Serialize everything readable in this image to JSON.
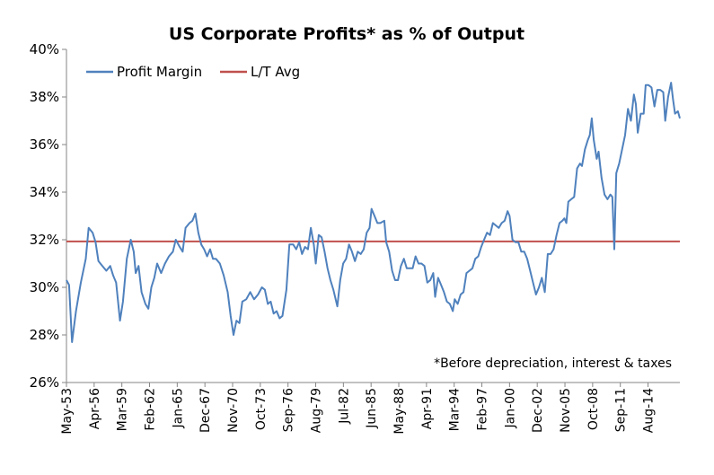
{
  "chart_data": {
    "type": "line",
    "title": "US Corporate Profits* as % of Output",
    "note": "*Before depreciation, interest & taxes",
    "xlabel": "",
    "ylabel": "",
    "ylim": [
      26,
      40
    ],
    "y_ticks": [
      "26%",
      "28%",
      "30%",
      "32%",
      "34%",
      "36%",
      "38%",
      "40%"
    ],
    "x_ticks": [
      "May-53",
      "Apr-56",
      "Mar-59",
      "Feb-62",
      "Jan-65",
      "Dec-67",
      "Nov-70",
      "Oct-73",
      "Sep-76",
      "Aug-79",
      "Jul-82",
      "Jun-85",
      "May-88",
      "Apr-91",
      "Mar-94",
      "Feb-97",
      "Jan-00",
      "Dec-02",
      "Nov-05",
      "Oct-08",
      "Sep-11",
      "Aug-14"
    ],
    "x_start": 1953.33,
    "x_end": 2016.0,
    "legend_position": "top-left",
    "series": [
      {
        "name": "Profit Margin",
        "color": "#4F81BD",
        "points": [
          [
            1953.33,
            30.3
          ],
          [
            1953.6,
            30.1
          ],
          [
            1953.9,
            27.7
          ],
          [
            1954.3,
            29.0
          ],
          [
            1954.8,
            30.2
          ],
          [
            1955.3,
            31.2
          ],
          [
            1955.6,
            32.5
          ],
          [
            1956.0,
            32.3
          ],
          [
            1956.3,
            31.9
          ],
          [
            1956.6,
            31.1
          ],
          [
            1957.0,
            30.9
          ],
          [
            1957.4,
            30.7
          ],
          [
            1957.8,
            30.9
          ],
          [
            1958.1,
            30.5
          ],
          [
            1958.4,
            30.2
          ],
          [
            1958.8,
            28.6
          ],
          [
            1959.1,
            29.4
          ],
          [
            1959.5,
            31.2
          ],
          [
            1959.9,
            32.0
          ],
          [
            1960.2,
            31.5
          ],
          [
            1960.4,
            30.6
          ],
          [
            1960.7,
            30.9
          ],
          [
            1961.0,
            29.8
          ],
          [
            1961.4,
            29.3
          ],
          [
            1961.7,
            29.1
          ],
          [
            1962.0,
            30.0
          ],
          [
            1962.3,
            30.4
          ],
          [
            1962.6,
            31.0
          ],
          [
            1963.0,
            30.6
          ],
          [
            1963.4,
            31.0
          ],
          [
            1963.8,
            31.3
          ],
          [
            1964.2,
            31.5
          ],
          [
            1964.5,
            32.0
          ],
          [
            1964.9,
            31.7
          ],
          [
            1965.2,
            31.5
          ],
          [
            1965.5,
            32.5
          ],
          [
            1965.9,
            32.7
          ],
          [
            1966.2,
            32.8
          ],
          [
            1966.5,
            33.1
          ],
          [
            1966.8,
            32.3
          ],
          [
            1967.1,
            31.8
          ],
          [
            1967.4,
            31.6
          ],
          [
            1967.7,
            31.3
          ],
          [
            1968.0,
            31.6
          ],
          [
            1968.3,
            31.2
          ],
          [
            1968.6,
            31.2
          ],
          [
            1969.0,
            31.0
          ],
          [
            1969.4,
            30.5
          ],
          [
            1969.8,
            29.8
          ],
          [
            1970.1,
            28.8
          ],
          [
            1970.4,
            28.0
          ],
          [
            1970.7,
            28.6
          ],
          [
            1971.0,
            28.5
          ],
          [
            1971.3,
            29.4
          ],
          [
            1971.7,
            29.5
          ],
          [
            1972.1,
            29.8
          ],
          [
            1972.5,
            29.5
          ],
          [
            1972.9,
            29.7
          ],
          [
            1973.3,
            30.0
          ],
          [
            1973.6,
            29.9
          ],
          [
            1973.9,
            29.3
          ],
          [
            1974.2,
            29.4
          ],
          [
            1974.5,
            28.9
          ],
          [
            1974.8,
            29.0
          ],
          [
            1975.1,
            28.7
          ],
          [
            1975.4,
            28.8
          ],
          [
            1975.8,
            29.9
          ],
          [
            1976.1,
            31.8
          ],
          [
            1976.5,
            31.8
          ],
          [
            1976.8,
            31.6
          ],
          [
            1977.1,
            31.9
          ],
          [
            1977.4,
            31.4
          ],
          [
            1977.7,
            31.7
          ],
          [
            1978.0,
            31.6
          ],
          [
            1978.3,
            32.5
          ],
          [
            1978.6,
            31.8
          ],
          [
            1978.8,
            31.0
          ],
          [
            1979.1,
            32.2
          ],
          [
            1979.4,
            32.1
          ],
          [
            1979.7,
            31.5
          ],
          [
            1980.0,
            30.8
          ],
          [
            1980.3,
            30.3
          ],
          [
            1980.6,
            29.9
          ],
          [
            1981.0,
            29.2
          ],
          [
            1981.3,
            30.3
          ],
          [
            1981.6,
            31.0
          ],
          [
            1981.9,
            31.2
          ],
          [
            1982.2,
            31.8
          ],
          [
            1982.5,
            31.5
          ],
          [
            1982.8,
            31.1
          ],
          [
            1983.1,
            31.5
          ],
          [
            1983.4,
            31.4
          ],
          [
            1983.7,
            31.6
          ],
          [
            1984.0,
            32.3
          ],
          [
            1984.3,
            32.5
          ],
          [
            1984.5,
            33.3
          ],
          [
            1984.8,
            33.0
          ],
          [
            1985.1,
            32.7
          ],
          [
            1985.4,
            32.7
          ],
          [
            1985.8,
            32.8
          ],
          [
            1986.0,
            31.9
          ],
          [
            1986.3,
            31.5
          ],
          [
            1986.6,
            30.7
          ],
          [
            1986.9,
            30.3
          ],
          [
            1987.2,
            30.3
          ],
          [
            1987.5,
            30.9
          ],
          [
            1987.8,
            31.2
          ],
          [
            1988.1,
            30.8
          ],
          [
            1988.4,
            30.8
          ],
          [
            1988.7,
            30.8
          ],
          [
            1989.0,
            31.3
          ],
          [
            1989.3,
            31.0
          ],
          [
            1989.6,
            31.0
          ],
          [
            1989.9,
            30.9
          ],
          [
            1990.2,
            30.2
          ],
          [
            1990.5,
            30.3
          ],
          [
            1990.8,
            30.6
          ],
          [
            1991.0,
            29.6
          ],
          [
            1991.3,
            30.4
          ],
          [
            1991.6,
            30.1
          ],
          [
            1991.9,
            29.8
          ],
          [
            1992.2,
            29.4
          ],
          [
            1992.5,
            29.3
          ],
          [
            1992.8,
            29.0
          ],
          [
            1993.0,
            29.5
          ],
          [
            1993.3,
            29.3
          ],
          [
            1993.6,
            29.7
          ],
          [
            1993.9,
            29.8
          ],
          [
            1994.2,
            30.6
          ],
          [
            1994.5,
            30.7
          ],
          [
            1994.8,
            30.8
          ],
          [
            1995.1,
            31.2
          ],
          [
            1995.4,
            31.3
          ],
          [
            1995.7,
            31.7
          ],
          [
            1996.0,
            32.0
          ],
          [
            1996.3,
            32.3
          ],
          [
            1996.6,
            32.2
          ],
          [
            1996.9,
            32.7
          ],
          [
            1997.2,
            32.6
          ],
          [
            1997.5,
            32.5
          ],
          [
            1997.8,
            32.7
          ],
          [
            1998.1,
            32.8
          ],
          [
            1998.4,
            33.2
          ],
          [
            1998.6,
            33.0
          ],
          [
            1998.9,
            32.0
          ],
          [
            1999.2,
            31.9
          ],
          [
            1999.5,
            31.9
          ],
          [
            1999.8,
            31.5
          ],
          [
            2000.1,
            31.5
          ],
          [
            2000.4,
            31.2
          ],
          [
            2000.7,
            30.7
          ],
          [
            2001.0,
            30.2
          ],
          [
            2001.3,
            29.7
          ],
          [
            2001.6,
            30.0
          ],
          [
            2001.9,
            30.4
          ],
          [
            2002.2,
            29.8
          ],
          [
            2002.5,
            31.4
          ],
          [
            2002.8,
            31.4
          ],
          [
            2003.1,
            31.6
          ],
          [
            2003.4,
            32.2
          ],
          [
            2003.7,
            32.7
          ],
          [
            2004.0,
            32.8
          ],
          [
            2004.2,
            32.9
          ],
          [
            2004.4,
            32.7
          ],
          [
            2004.6,
            33.6
          ],
          [
            2004.9,
            33.7
          ],
          [
            2005.2,
            33.8
          ],
          [
            2005.5,
            35.0
          ],
          [
            2005.8,
            35.2
          ],
          [
            2006.0,
            35.1
          ],
          [
            2006.3,
            35.8
          ],
          [
            2006.6,
            36.2
          ],
          [
            2006.8,
            36.4
          ],
          [
            2007.0,
            37.1
          ],
          [
            2007.2,
            36.2
          ],
          [
            2007.5,
            35.4
          ],
          [
            2007.7,
            35.7
          ],
          [
            2008.0,
            34.6
          ],
          [
            2008.3,
            33.9
          ],
          [
            2008.6,
            33.7
          ],
          [
            2008.9,
            33.9
          ],
          [
            2009.1,
            33.8
          ],
          [
            2009.3,
            31.6
          ],
          [
            2009.5,
            34.8
          ],
          [
            2009.8,
            35.2
          ],
          [
            2010.1,
            35.8
          ],
          [
            2010.4,
            36.4
          ],
          [
            2010.7,
            37.5
          ],
          [
            2011.0,
            37.0
          ],
          [
            2011.3,
            38.1
          ],
          [
            2011.5,
            37.7
          ],
          [
            2011.7,
            36.5
          ],
          [
            2012.0,
            37.3
          ],
          [
            2012.3,
            37.3
          ],
          [
            2012.5,
            38.5
          ],
          [
            2012.8,
            38.5
          ],
          [
            2013.1,
            38.4
          ],
          [
            2013.4,
            37.6
          ],
          [
            2013.7,
            38.3
          ],
          [
            2014.0,
            38.3
          ],
          [
            2014.3,
            38.2
          ],
          [
            2014.5,
            37.0
          ],
          [
            2014.8,
            38.0
          ],
          [
            2015.1,
            38.6
          ],
          [
            2015.3,
            37.9
          ],
          [
            2015.5,
            37.3
          ],
          [
            2015.8,
            37.4
          ],
          [
            2016.0,
            37.1
          ]
        ]
      },
      {
        "name": "L/T Avg",
        "color": "#C0504D",
        "points": [
          [
            1953.33,
            31.93
          ],
          [
            2016.0,
            31.93
          ]
        ]
      }
    ]
  }
}
